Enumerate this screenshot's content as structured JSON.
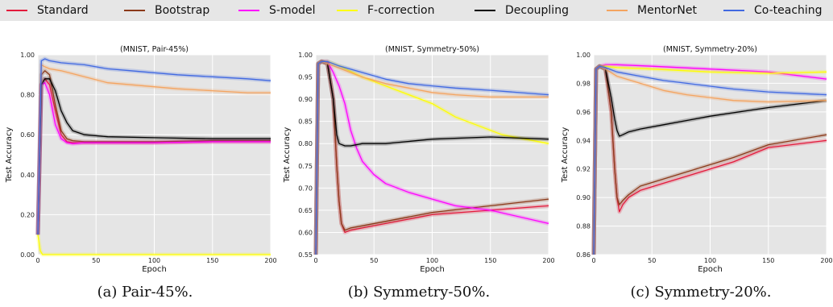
{
  "legend": {
    "items": [
      {
        "label": "Standard",
        "color": "#e31a3c"
      },
      {
        "label": "Bootstrap",
        "color": "#8b3a1a"
      },
      {
        "label": "S-model",
        "color": "#ff00ff"
      },
      {
        "label": "F-correction",
        "color": "#ffff00"
      },
      {
        "label": "Decoupling",
        "color": "#000000"
      },
      {
        "label": "MentorNet",
        "color": "#f4a460"
      },
      {
        "label": "Co-teaching",
        "color": "#4169e1"
      }
    ]
  },
  "captions": [
    "(a) Pair-45%.",
    "(b) Symmetry-50%.",
    "(c) Symmetry-20%."
  ],
  "chart_data": [
    {
      "type": "line",
      "title": "(MNIST, Pair-45%)",
      "xlabel": "Epoch",
      "ylabel": "Test Accuracy",
      "xlim": [
        0,
        200
      ],
      "ylim": [
        0.0,
        1.0
      ],
      "xticks": [
        0,
        50,
        100,
        150,
        200
      ],
      "yticks": [
        0.0,
        0.2,
        0.4,
        0.6,
        0.8,
        1.0
      ],
      "ytick_labels": [
        "0.00",
        "0.20",
        "0.40",
        "0.60",
        "0.80",
        "1.00"
      ],
      "grid": true,
      "series": [
        {
          "name": "Standard",
          "x": [
            0,
            3,
            6,
            10,
            15,
            20,
            25,
            30,
            40,
            60,
            100,
            150,
            200
          ],
          "y": [
            0.1,
            0.85,
            0.88,
            0.85,
            0.72,
            0.6,
            0.565,
            0.56,
            0.56,
            0.56,
            0.56,
            0.565,
            0.565
          ]
        },
        {
          "name": "Bootstrap",
          "x": [
            0,
            3,
            6,
            10,
            15,
            20,
            25,
            30,
            40,
            60,
            100,
            150,
            200
          ],
          "y": [
            0.1,
            0.9,
            0.92,
            0.9,
            0.75,
            0.62,
            0.58,
            0.57,
            0.565,
            0.565,
            0.565,
            0.57,
            0.57
          ]
        },
        {
          "name": "S-model",
          "x": [
            0,
            3,
            6,
            10,
            15,
            20,
            25,
            30,
            40,
            60,
            100,
            150,
            200
          ],
          "y": [
            0.1,
            0.85,
            0.86,
            0.8,
            0.65,
            0.58,
            0.56,
            0.555,
            0.56,
            0.56,
            0.56,
            0.565,
            0.565
          ]
        },
        {
          "name": "F-correction",
          "x": [
            0,
            2,
            4,
            200
          ],
          "y": [
            0.1,
            0.02,
            0.0,
            0.0
          ]
        },
        {
          "name": "Decoupling",
          "x": [
            0,
            3,
            6,
            10,
            15,
            20,
            25,
            30,
            40,
            60,
            100,
            150,
            200
          ],
          "y": [
            0.1,
            0.85,
            0.88,
            0.88,
            0.82,
            0.72,
            0.66,
            0.62,
            0.6,
            0.59,
            0.585,
            0.58,
            0.58
          ]
        },
        {
          "name": "MentorNet",
          "x": [
            0,
            3,
            6,
            10,
            20,
            40,
            60,
            80,
            100,
            120,
            150,
            180,
            200
          ],
          "y": [
            0.1,
            0.95,
            0.94,
            0.93,
            0.92,
            0.89,
            0.86,
            0.85,
            0.84,
            0.83,
            0.82,
            0.81,
            0.81
          ]
        },
        {
          "name": "Co-teaching",
          "x": [
            0,
            3,
            6,
            10,
            20,
            40,
            60,
            80,
            100,
            120,
            150,
            180,
            200
          ],
          "y": [
            0.1,
            0.97,
            0.98,
            0.97,
            0.96,
            0.95,
            0.93,
            0.92,
            0.91,
            0.9,
            0.89,
            0.88,
            0.87
          ]
        }
      ]
    },
    {
      "type": "line",
      "title": "(MNIST, Symmetry-50%)",
      "xlabel": "Epoch",
      "ylabel": "Test Accuracy",
      "xlim": [
        0,
        200
      ],
      "ylim": [
        0.55,
        1.0
      ],
      "xticks": [
        0,
        50,
        100,
        150,
        200
      ],
      "yticks": [
        0.55,
        0.6,
        0.65,
        0.7,
        0.75,
        0.8,
        0.85,
        0.9,
        0.95,
        1.0
      ],
      "ytick_labels": [
        "0.55",
        "0.60",
        "0.65",
        "0.70",
        "0.75",
        "0.80",
        "0.85",
        "0.90",
        "0.95",
        "1.00"
      ],
      "grid": true,
      "series": [
        {
          "name": "Standard",
          "x": [
            0,
            2,
            5,
            10,
            15,
            18,
            20,
            22,
            25,
            30,
            40,
            60,
            80,
            100,
            150,
            200
          ],
          "y": [
            0.55,
            0.98,
            0.985,
            0.98,
            0.9,
            0.75,
            0.67,
            0.62,
            0.6,
            0.605,
            0.61,
            0.62,
            0.63,
            0.64,
            0.65,
            0.66
          ]
        },
        {
          "name": "Bootstrap",
          "x": [
            0,
            2,
            5,
            10,
            15,
            18,
            20,
            22,
            25,
            30,
            40,
            60,
            80,
            100,
            150,
            200
          ],
          "y": [
            0.55,
            0.98,
            0.985,
            0.98,
            0.9,
            0.75,
            0.67,
            0.62,
            0.605,
            0.61,
            0.615,
            0.625,
            0.635,
            0.645,
            0.66,
            0.675
          ]
        },
        {
          "name": "S-model",
          "x": [
            0,
            2,
            5,
            10,
            15,
            20,
            25,
            30,
            35,
            40,
            50,
            60,
            80,
            100,
            120,
            150,
            200
          ],
          "y": [
            0.55,
            0.98,
            0.985,
            0.985,
            0.96,
            0.93,
            0.89,
            0.83,
            0.79,
            0.76,
            0.73,
            0.71,
            0.69,
            0.675,
            0.66,
            0.65,
            0.62
          ]
        },
        {
          "name": "F-correction",
          "x": [
            0,
            2,
            5,
            10,
            20,
            40,
            60,
            80,
            100,
            120,
            140,
            150,
            160,
            180,
            200
          ],
          "y": [
            0.55,
            0.98,
            0.985,
            0.985,
            0.975,
            0.95,
            0.93,
            0.91,
            0.89,
            0.86,
            0.84,
            0.83,
            0.82,
            0.81,
            0.8
          ]
        },
        {
          "name": "Decoupling",
          "x": [
            0,
            2,
            5,
            10,
            15,
            18,
            20,
            25,
            30,
            40,
            60,
            80,
            100,
            150,
            200
          ],
          "y": [
            0.55,
            0.98,
            0.985,
            0.98,
            0.9,
            0.82,
            0.8,
            0.795,
            0.795,
            0.8,
            0.8,
            0.805,
            0.81,
            0.815,
            0.81
          ]
        },
        {
          "name": "MentorNet",
          "x": [
            0,
            2,
            5,
            10,
            20,
            40,
            60,
            80,
            100,
            120,
            150,
            200
          ],
          "y": [
            0.55,
            0.98,
            0.985,
            0.98,
            0.97,
            0.95,
            0.935,
            0.925,
            0.915,
            0.91,
            0.905,
            0.905
          ]
        },
        {
          "name": "Co-teaching",
          "x": [
            0,
            2,
            5,
            10,
            20,
            40,
            60,
            80,
            100,
            120,
            150,
            200
          ],
          "y": [
            0.55,
            0.98,
            0.985,
            0.985,
            0.975,
            0.96,
            0.945,
            0.935,
            0.93,
            0.925,
            0.92,
            0.91
          ]
        }
      ]
    },
    {
      "type": "line",
      "title": "(MNIST, Symmetry-20%)",
      "xlabel": "Epoch",
      "ylabel": "Test Accuracy",
      "xlim": [
        0,
        200
      ],
      "ylim": [
        0.86,
        1.0
      ],
      "xticks": [
        0,
        50,
        100,
        150,
        200
      ],
      "yticks": [
        0.86,
        0.88,
        0.9,
        0.92,
        0.94,
        0.96,
        0.98,
        1.0
      ],
      "ytick_labels": [
        "0.86",
        "0.88",
        "0.90",
        "0.92",
        "0.94",
        "0.96",
        "0.98",
        "1.00"
      ],
      "grid": true,
      "series": [
        {
          "name": "Standard",
          "x": [
            0,
            2,
            5,
            10,
            15,
            18,
            20,
            22,
            25,
            30,
            40,
            60,
            80,
            100,
            120,
            150,
            200
          ],
          "y": [
            0.86,
            0.99,
            0.992,
            0.99,
            0.96,
            0.92,
            0.9,
            0.89,
            0.895,
            0.9,
            0.905,
            0.91,
            0.915,
            0.92,
            0.925,
            0.935,
            0.94
          ]
        },
        {
          "name": "Bootstrap",
          "x": [
            0,
            2,
            5,
            10,
            15,
            18,
            20,
            22,
            25,
            30,
            40,
            60,
            80,
            100,
            120,
            150,
            200
          ],
          "y": [
            0.86,
            0.99,
            0.992,
            0.99,
            0.96,
            0.92,
            0.9,
            0.895,
            0.898,
            0.902,
            0.908,
            0.913,
            0.918,
            0.923,
            0.928,
            0.937,
            0.944
          ]
        },
        {
          "name": "S-model",
          "x": [
            0,
            2,
            5,
            10,
            20,
            50,
            100,
            150,
            200
          ],
          "y": [
            0.86,
            0.99,
            0.992,
            0.993,
            0.993,
            0.992,
            0.99,
            0.988,
            0.983
          ]
        },
        {
          "name": "F-correction",
          "x": [
            0,
            2,
            5,
            10,
            20,
            50,
            100,
            150,
            200
          ],
          "y": [
            0.86,
            0.99,
            0.992,
            0.992,
            0.991,
            0.99,
            0.988,
            0.987,
            0.988
          ]
        },
        {
          "name": "Decoupling",
          "x": [
            0,
            2,
            5,
            10,
            15,
            18,
            20,
            22,
            25,
            30,
            40,
            60,
            80,
            100,
            150,
            200
          ],
          "y": [
            0.86,
            0.99,
            0.992,
            0.99,
            0.97,
            0.955,
            0.947,
            0.943,
            0.944,
            0.946,
            0.948,
            0.951,
            0.954,
            0.957,
            0.963,
            0.968
          ]
        },
        {
          "name": "MentorNet",
          "x": [
            0,
            2,
            5,
            10,
            20,
            40,
            60,
            80,
            100,
            120,
            150,
            200
          ],
          "y": [
            0.86,
            0.99,
            0.992,
            0.99,
            0.985,
            0.98,
            0.975,
            0.972,
            0.97,
            0.968,
            0.967,
            0.968
          ]
        },
        {
          "name": "Co-teaching",
          "x": [
            0,
            2,
            5,
            10,
            20,
            40,
            60,
            80,
            100,
            120,
            150,
            200
          ],
          "y": [
            0.86,
            0.99,
            0.992,
            0.991,
            0.988,
            0.985,
            0.982,
            0.98,
            0.978,
            0.976,
            0.974,
            0.972
          ]
        }
      ]
    }
  ]
}
